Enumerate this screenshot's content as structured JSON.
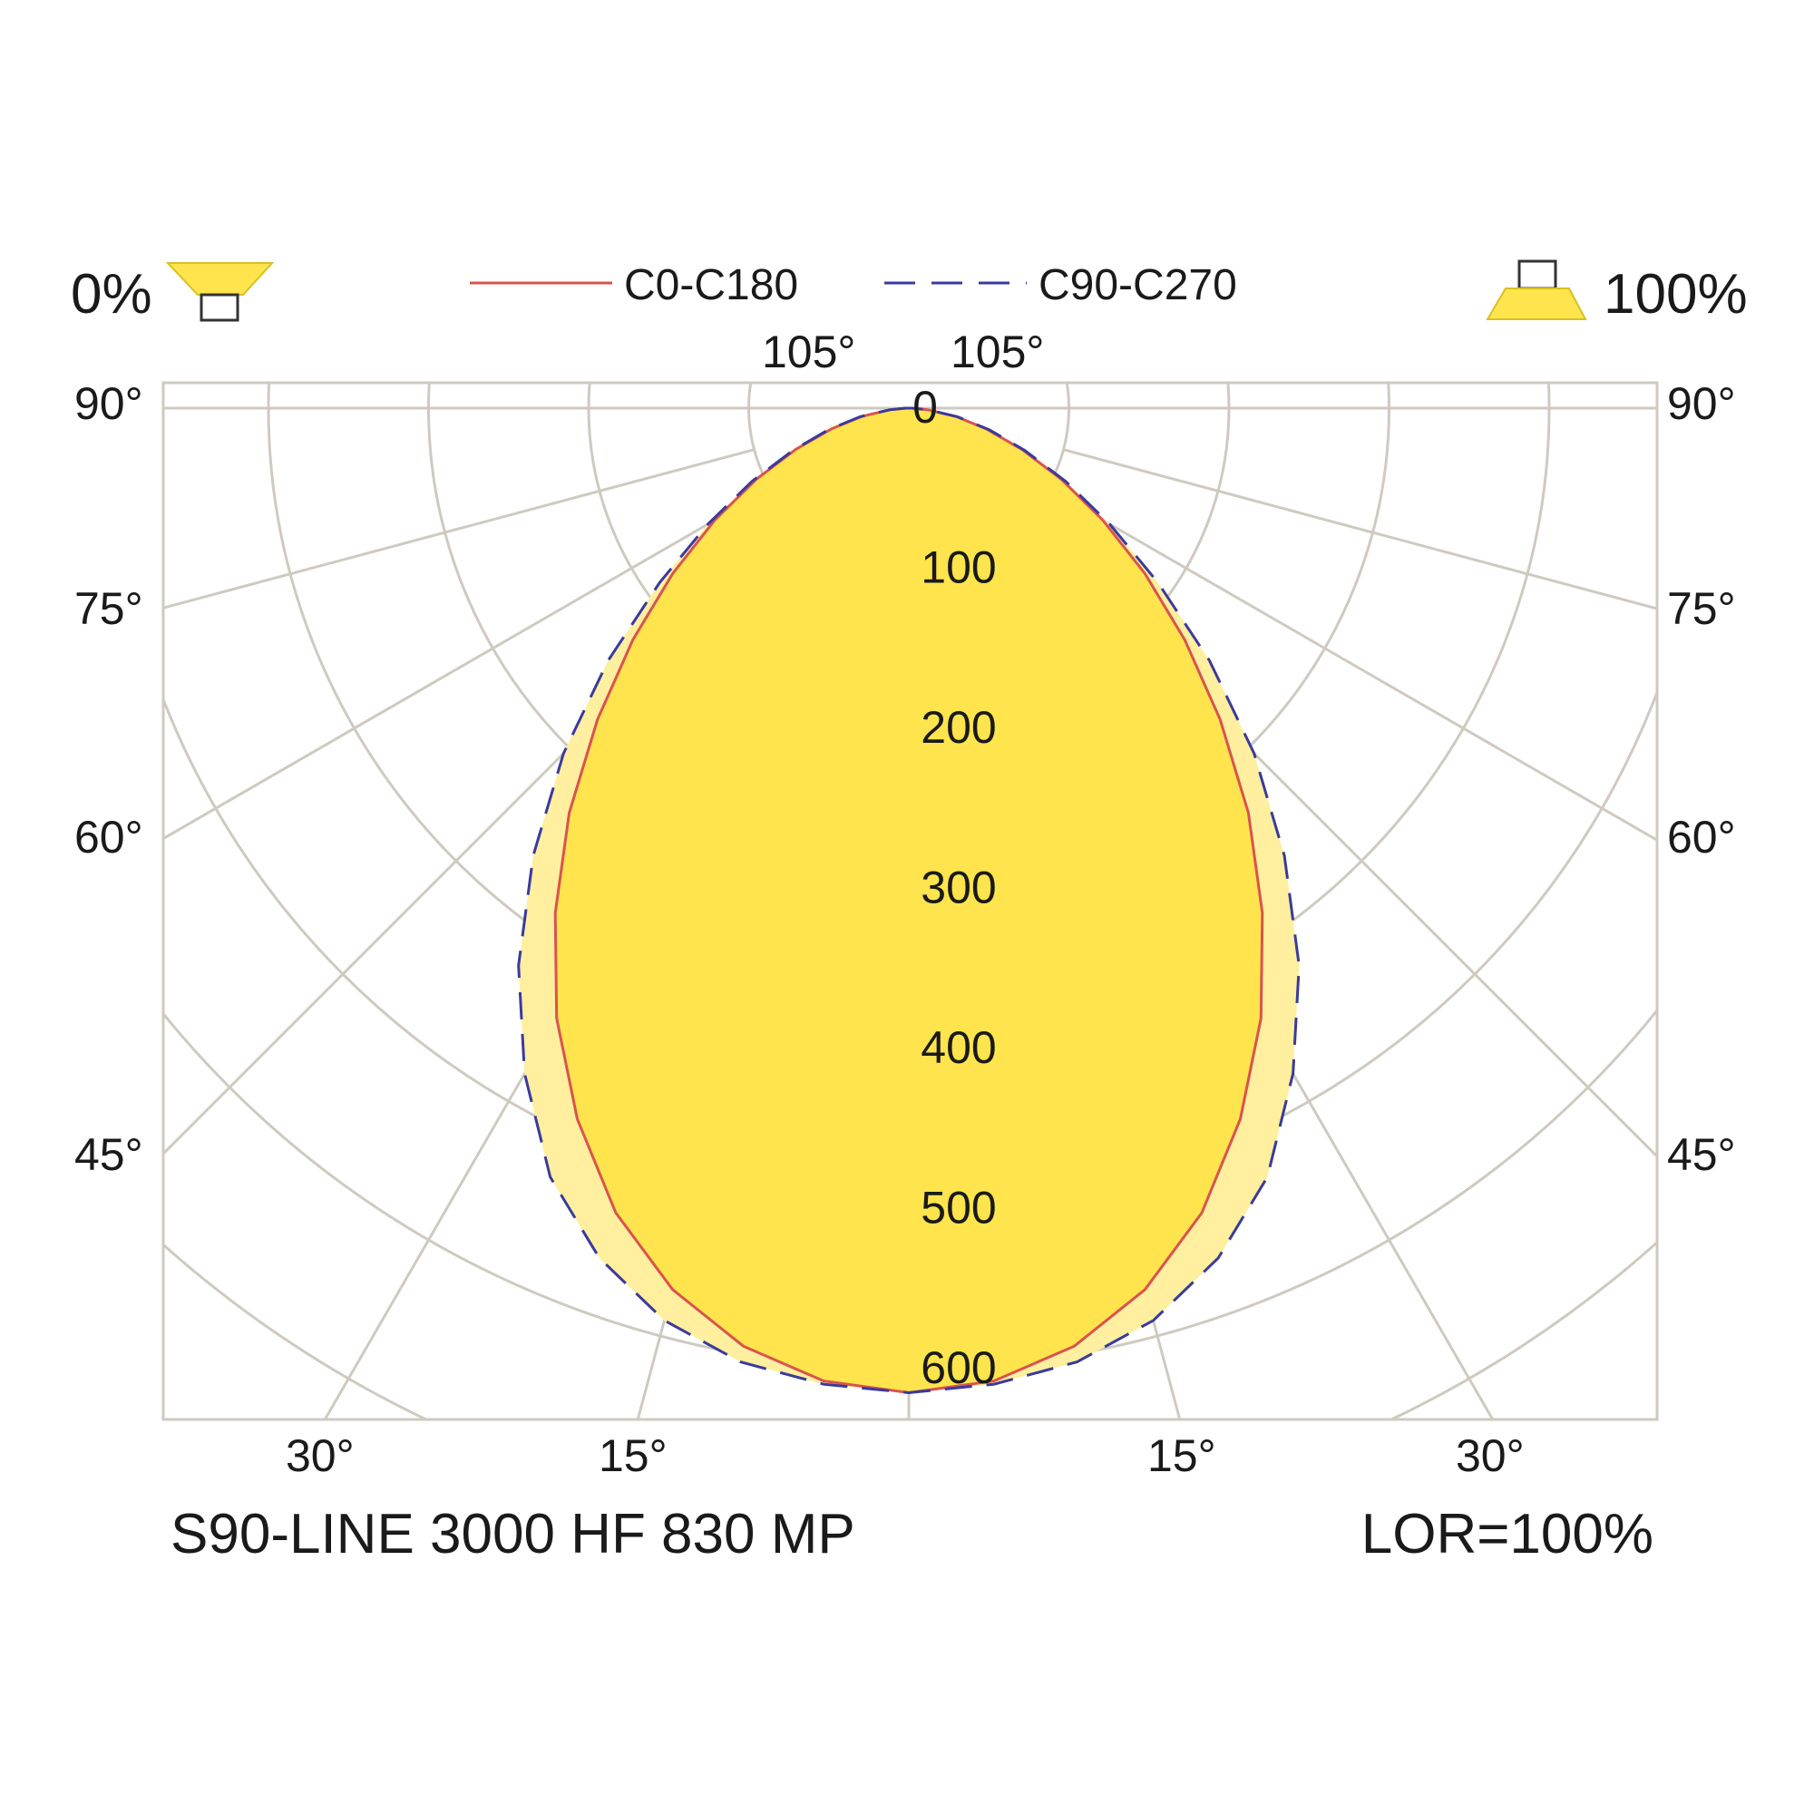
{
  "legend": {
    "downward_pct": "0%",
    "upward_pct": "100%",
    "series": [
      {
        "name": "C0-C180",
        "color": "#d9534f",
        "style": "solid"
      },
      {
        "name": "C90-C270",
        "color": "#3a3a9c",
        "style": "dashed"
      }
    ]
  },
  "footer": {
    "product": "S90-LINE 3000 HF 830 MP",
    "lor": "LOR=100%"
  },
  "colors": {
    "fill_c0": "#ffe44d",
    "fill_c90": "#ffef9e",
    "grid": "#cfcac0",
    "frame": "#cfcac0",
    "text": "#1a1a1a"
  },
  "chart_data": {
    "type": "polar",
    "radial_ticks": [
      "0",
      "100",
      "200",
      "300",
      "400",
      "500",
      "600"
    ],
    "radial_values": [
      0,
      100,
      200,
      300,
      400,
      500,
      600
    ],
    "top_angle_labels": [
      "105°",
      "105°"
    ],
    "side_angle_labels": [
      "90°",
      "75°",
      "60°",
      "45°"
    ],
    "bottom_angle_labels": [
      "30°",
      "15°",
      "15°",
      "30°"
    ],
    "series": [
      {
        "name": "C0-C180",
        "angles": [
          0,
          5,
          10,
          15,
          20,
          25,
          30,
          35,
          40,
          45,
          50,
          55,
          60,
          65,
          70,
          75,
          80,
          85,
          90
        ],
        "values": [
          615,
          610,
          595,
          570,
          535,
          490,
          440,
          385,
          330,
          275,
          225,
          180,
          140,
          105,
          75,
          50,
          30,
          12,
          2
        ]
      },
      {
        "name": "C90-C270",
        "angles": [
          0,
          5,
          10,
          15,
          20,
          25,
          30,
          35,
          40,
          45,
          50,
          55,
          60,
          65,
          70,
          75,
          80,
          85,
          90
        ],
        "values": [
          615,
          612,
          605,
          590,
          565,
          530,
          480,
          425,
          365,
          305,
          245,
          190,
          145,
          108,
          77,
          52,
          31,
          12,
          2
        ]
      }
    ]
  }
}
